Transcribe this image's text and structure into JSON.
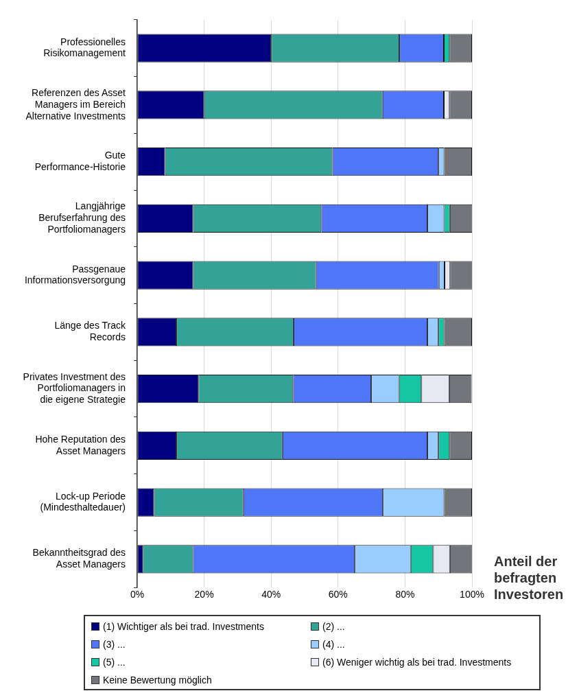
{
  "chart_data": {
    "type": "bar",
    "orientation": "horizontal",
    "stacked": true,
    "xlabel": "Anteil der befragten Investoren",
    "categories": [
      "Professionelles Risikomanagement",
      "Referenzen des Asset Managers im Bereich Alternative Investments",
      "Gute Performance-Historie",
      "Langjährige Berufserfahrung des Portfoliomanagers",
      "Passgenaue Informationsversorgung",
      "Länge des Track Records",
      "Privates Investment des Portfoliomanagers in die eigene Strategie",
      "Hohe Reputation des Asset Managers",
      "Lock-up Periode (Mindesthaltedauer)",
      "Bekanntheitsgrad des Asset Managers"
    ],
    "series": [
      {
        "name": "(1) Wichtiger als bei trad. Investments",
        "color": "#000080",
        "values": [
          40,
          20,
          8.3,
          16.7,
          16.7,
          11.7,
          18.3,
          11.7,
          5,
          1.7
        ]
      },
      {
        "name": "(2) ...",
        "color": "#33a398",
        "values": [
          38.3,
          53.3,
          50,
          38.3,
          36.7,
          35,
          28.3,
          31.7,
          26.7,
          15
        ]
      },
      {
        "name": "(3) ...",
        "color": "#4f76f7",
        "values": [
          13.3,
          18.3,
          31.7,
          31.7,
          36.7,
          40,
          23.3,
          43.3,
          41.7,
          48.3
        ]
      },
      {
        "name": "(4) ...",
        "color": "#99ccff",
        "values": [
          0,
          0,
          1.7,
          5,
          1.7,
          3.3,
          8.3,
          3.3,
          18.3,
          16.7
        ]
      },
      {
        "name": "(5) ...",
        "color": "#14c6a4",
        "values": [
          1.7,
          0,
          0,
          1.7,
          0,
          1.7,
          6.7,
          3.3,
          0,
          6.7
        ]
      },
      {
        "name": "(6) Weniger wichtig als bei trad. Investments",
        "color": "#e6e9f2",
        "values": [
          0,
          1.7,
          0,
          0,
          1.7,
          0,
          8.3,
          0,
          0,
          5
        ]
      },
      {
        "name": "Keine Bewertung möglich",
        "color": "#727579",
        "values": [
          6.7,
          6.7,
          8.3,
          6.7,
          6.7,
          8.3,
          6.7,
          6.7,
          8.3,
          6.7
        ]
      }
    ],
    "xlim": [
      0,
      100
    ],
    "xticks": [
      {
        "value": 0,
        "label": "0%"
      },
      {
        "value": 20,
        "label": "20%"
      },
      {
        "value": 40,
        "label": "40%"
      },
      {
        "value": 60,
        "label": "60%"
      },
      {
        "value": 80,
        "label": "80%"
      },
      {
        "value": 100,
        "label": "100%"
      }
    ],
    "grid": "x",
    "legend": "bottom"
  }
}
